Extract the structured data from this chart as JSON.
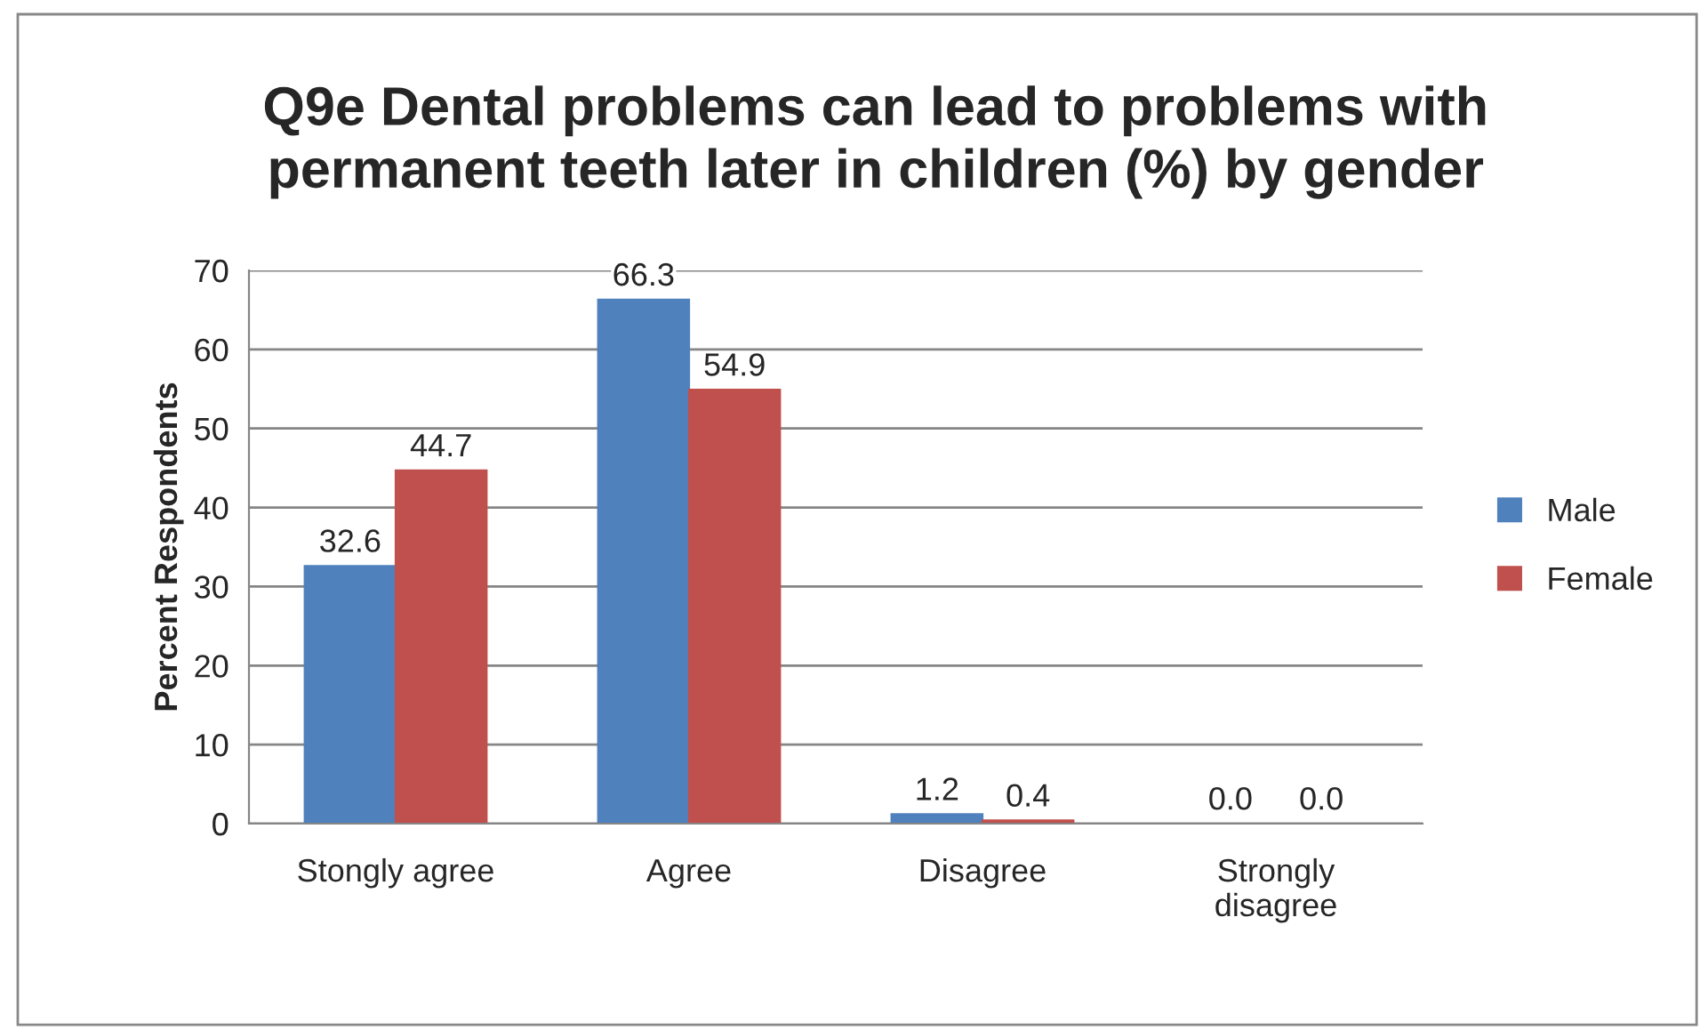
{
  "chart_data": {
    "type": "bar",
    "title": "Q9e Dental problems can lead to problems with\npermanent teeth later in children (%) by gender",
    "ylabel": "Percent Respondents",
    "categories": [
      "Stongly agree",
      "Agree",
      "Disagree",
      "Strongly disagree"
    ],
    "series": [
      {
        "name": "Male",
        "color": "#4f81bd",
        "values": [
          32.6,
          66.3,
          1.2,
          0.0
        ],
        "value_labels": [
          "32.6",
          "66.3",
          "1.2",
          "0.0"
        ]
      },
      {
        "name": "Female",
        "color": "#c0504d",
        "values": [
          44.7,
          54.9,
          0.4,
          0.0
        ],
        "value_labels": [
          "44.7",
          "54.9",
          "0.4",
          "0.0"
        ]
      }
    ],
    "ylim": [
      0,
      70
    ],
    "yticks": [
      0,
      10,
      20,
      30,
      40,
      50,
      60,
      70
    ],
    "grid": "y",
    "legend": "right"
  }
}
